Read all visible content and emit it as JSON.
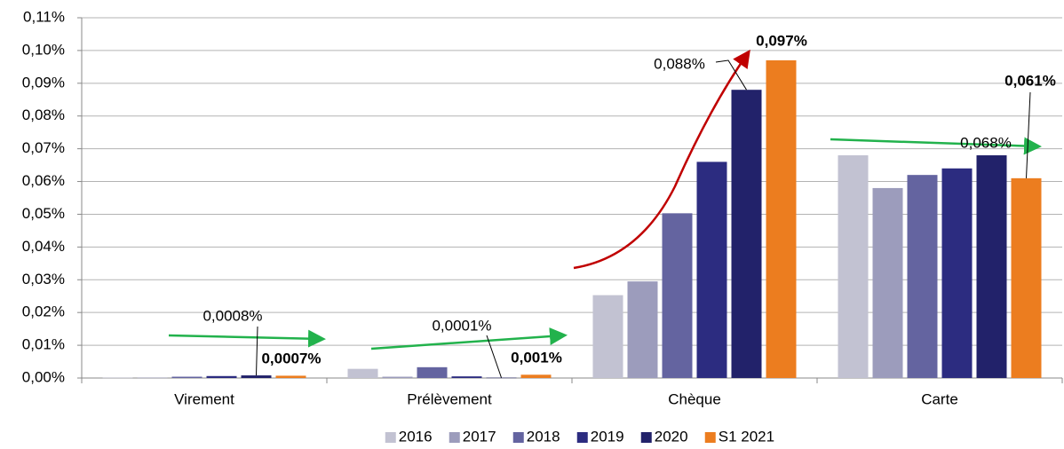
{
  "chart_data": {
    "type": "bar",
    "categories": [
      "Virement",
      "Prélèvement",
      "Chèque",
      "Carte"
    ],
    "series": [
      {
        "name": "2016",
        "color": "#c2c2d2",
        "values": [
          0.0001,
          0.0028,
          0.0253,
          0.068
        ]
      },
      {
        "name": "2017",
        "color": "#9c9cbc",
        "values": [
          0.0001,
          0.0004,
          0.0295,
          0.058
        ]
      },
      {
        "name": "2018",
        "color": "#6464a0",
        "values": [
          0.0004,
          0.0033,
          0.0503,
          0.062
        ]
      },
      {
        "name": "2019",
        "color": "#2c2c80",
        "values": [
          0.0006,
          0.0005,
          0.066,
          0.064
        ]
      },
      {
        "name": "2020",
        "color": "#22226a",
        "values": [
          0.0008,
          0.0001,
          0.088,
          0.068
        ],
        "value_labels": [
          "0,0008%",
          "0,0001%",
          "0,088%",
          "0,068%"
        ]
      },
      {
        "name": "S1 2021",
        "color": "#ec7d1f",
        "values": [
          0.0007,
          0.001,
          0.097,
          0.061
        ],
        "value_labels": [
          "0,0007%",
          "0,001%",
          "0,097%",
          "0,061%"
        ]
      }
    ],
    "ylim": [
      0,
      0.11
    ],
    "yticks": [
      {
        "value": 0,
        "label": "0,00%"
      },
      {
        "value": 0.01,
        "label": "0,01%"
      },
      {
        "value": 0.02,
        "label": "0,02%"
      },
      {
        "value": 0.03,
        "label": "0,03%"
      },
      {
        "value": 0.04,
        "label": "0,04%"
      },
      {
        "value": 0.05,
        "label": "0,05%"
      },
      {
        "value": 0.06,
        "label": "0,06%"
      },
      {
        "value": 0.07,
        "label": "0,07%"
      },
      {
        "value": 0.08,
        "label": "0,08%"
      },
      {
        "value": 0.09,
        "label": "0,09%"
      },
      {
        "value": 0.1,
        "label": "0,10%"
      },
      {
        "value": 0.11,
        "label": "0,11%"
      }
    ],
    "grid": true,
    "legend": "bottom"
  }
}
